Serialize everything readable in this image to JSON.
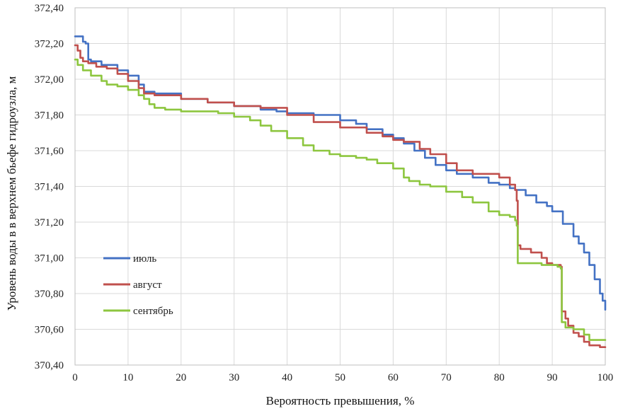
{
  "chart_data": {
    "type": "line",
    "title": "",
    "xlabel": "Вероятность превышения, %",
    "ylabel": "Уровень воды в в верхнем бьефе гидроузла, м",
    "xlim": [
      0,
      100
    ],
    "ylim": [
      370.4,
      372.4
    ],
    "xticks": [
      0,
      10,
      20,
      30,
      40,
      50,
      60,
      70,
      80,
      90,
      100
    ],
    "xtick_labels": [
      "0",
      "10",
      "20",
      "30",
      "40",
      "50",
      "60",
      "70",
      "80",
      "90",
      "100"
    ],
    "yticks": [
      370.4,
      370.6,
      370.8,
      371.0,
      371.2,
      371.4,
      371.6,
      371.8,
      372.0,
      372.2,
      372.4
    ],
    "ytick_labels": [
      "370,40",
      "370,60",
      "370,80",
      "371,00",
      "371,20",
      "371,40",
      "371,60",
      "371,80",
      "372,00",
      "372,20",
      "372,40"
    ],
    "grid": true,
    "legend_position": "left-middle",
    "series": [
      {
        "name": "июль",
        "color": "#4472C4",
        "x": [
          0,
          0.8,
          1.5,
          2.0,
          2.5,
          3,
          5,
          8,
          10,
          12,
          13,
          15,
          20,
          25,
          30,
          35,
          38,
          40,
          45,
          50,
          53,
          55,
          58,
          60,
          62,
          64,
          66,
          68,
          70,
          72,
          75,
          78,
          80,
          82,
          83,
          85,
          87,
          89,
          90,
          92,
          94,
          95,
          96,
          97,
          98,
          99,
          99.5,
          100
        ],
        "values": [
          372.24,
          372.24,
          372.21,
          372.2,
          372.11,
          372.1,
          372.08,
          372.05,
          372.02,
          371.97,
          371.93,
          371.92,
          371.89,
          371.87,
          371.85,
          371.83,
          371.82,
          371.81,
          371.8,
          371.77,
          371.75,
          371.72,
          371.69,
          371.67,
          371.64,
          371.6,
          371.56,
          371.52,
          371.49,
          371.47,
          371.45,
          371.42,
          371.41,
          371.39,
          371.38,
          371.35,
          371.31,
          371.29,
          371.26,
          371.19,
          371.12,
          371.08,
          371.03,
          370.96,
          370.88,
          370.8,
          370.76,
          370.71
        ]
      },
      {
        "name": "август",
        "color": "#C0504D",
        "x": [
          0,
          0.5,
          1,
          1.5,
          2.5,
          4,
          6,
          8,
          10,
          12,
          13,
          15,
          20,
          25,
          30,
          35,
          40,
          45,
          50,
          55,
          58,
          60,
          62,
          65,
          67,
          70,
          72,
          75,
          80,
          82,
          83,
          83.3,
          83.5,
          84,
          86,
          88,
          89,
          90,
          91,
          91.6,
          91.8,
          92.5,
          93,
          94,
          95,
          96,
          97,
          98,
          99,
          100
        ],
        "values": [
          372.19,
          372.16,
          372.12,
          372.1,
          372.09,
          372.07,
          372.06,
          372.03,
          371.99,
          371.95,
          371.92,
          371.91,
          371.89,
          371.87,
          371.85,
          371.84,
          371.8,
          371.76,
          371.73,
          371.7,
          371.68,
          371.66,
          371.65,
          371.61,
          371.58,
          371.53,
          371.49,
          371.47,
          371.45,
          371.41,
          371.38,
          371.32,
          371.07,
          371.05,
          371.03,
          371.0,
          370.97,
          370.96,
          370.96,
          370.95,
          370.7,
          370.66,
          370.62,
          370.58,
          370.56,
          370.53,
          370.51,
          370.51,
          370.5,
          370.5
        ]
      },
      {
        "name": "сентябрь",
        "color": "#8DC63F",
        "x": [
          0,
          0.5,
          1.5,
          3,
          5,
          6,
          8,
          10,
          12,
          13,
          14,
          15,
          17,
          20,
          27,
          30,
          33,
          35,
          37,
          40,
          43,
          45,
          48,
          50,
          53,
          55,
          57,
          60,
          62,
          63,
          65,
          67,
          70,
          73,
          75,
          78,
          80,
          82,
          83,
          83.3,
          83.5,
          84,
          87,
          88,
          90,
          91,
          91.6,
          91.8,
          92.5,
          94,
          96,
          97,
          98,
          100
        ],
        "values": [
          372.11,
          372.08,
          372.05,
          372.02,
          371.99,
          371.97,
          371.96,
          371.94,
          371.91,
          371.89,
          371.86,
          371.84,
          371.83,
          371.82,
          371.81,
          371.79,
          371.77,
          371.74,
          371.71,
          371.67,
          371.63,
          371.6,
          371.58,
          371.57,
          371.56,
          371.55,
          371.53,
          371.5,
          371.45,
          371.43,
          371.41,
          371.4,
          371.37,
          371.34,
          371.31,
          371.26,
          371.24,
          371.23,
          371.21,
          371.18,
          370.97,
          370.97,
          370.97,
          370.96,
          370.96,
          370.95,
          370.94,
          370.64,
          370.61,
          370.6,
          370.57,
          370.54,
          370.54,
          370.54
        ]
      }
    ]
  }
}
